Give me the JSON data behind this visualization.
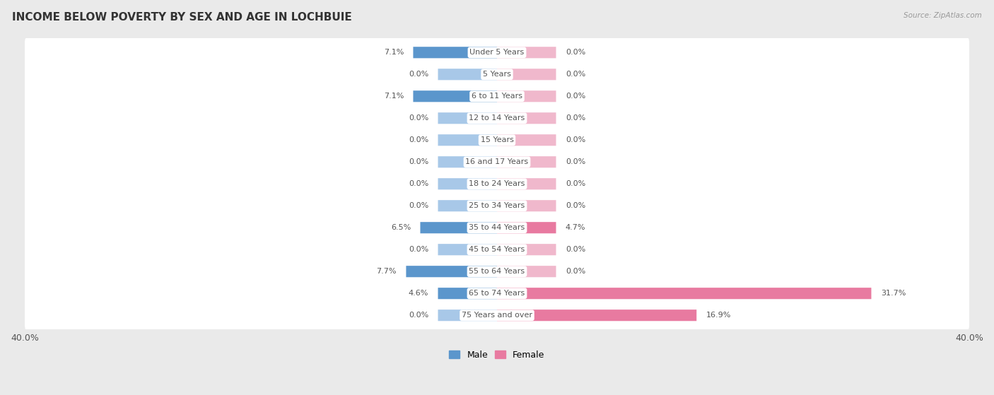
{
  "title": "INCOME BELOW POVERTY BY SEX AND AGE IN LOCHBUIE",
  "source": "Source: ZipAtlas.com",
  "categories": [
    "Under 5 Years",
    "5 Years",
    "6 to 11 Years",
    "12 to 14 Years",
    "15 Years",
    "16 and 17 Years",
    "18 to 24 Years",
    "25 to 34 Years",
    "35 to 44 Years",
    "45 to 54 Years",
    "55 to 64 Years",
    "65 to 74 Years",
    "75 Years and over"
  ],
  "male_values": [
    7.1,
    0.0,
    7.1,
    0.0,
    0.0,
    0.0,
    0.0,
    0.0,
    6.5,
    0.0,
    7.7,
    4.6,
    0.0
  ],
  "female_values": [
    0.0,
    0.0,
    0.0,
    0.0,
    0.0,
    0.0,
    0.0,
    0.0,
    4.7,
    0.0,
    0.0,
    31.7,
    16.9
  ],
  "male_color_strong": "#5b96cc",
  "male_color_light": "#a8c8e8",
  "female_color_strong": "#e87aa0",
  "female_color_light": "#f0b8cc",
  "axis_limit": 40.0,
  "bar_height": 0.52,
  "min_bar_width": 5.0,
  "background_color": "#eaeaea",
  "row_bg_color": "#ffffff",
  "label_bg_color": "#ffffff",
  "text_color": "#555555",
  "legend_male": "Male",
  "legend_female": "Female",
  "title_fontsize": 11,
  "label_fontsize": 8,
  "value_fontsize": 8,
  "axis_fontsize": 9
}
